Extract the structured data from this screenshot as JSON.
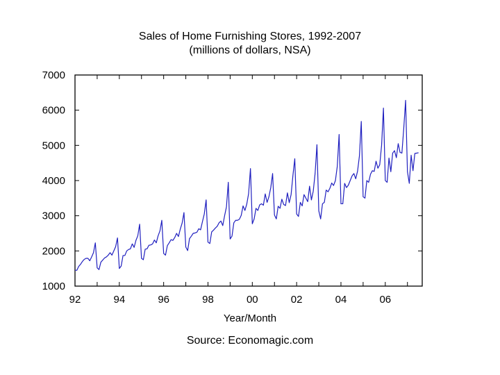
{
  "chart_data": {
    "type": "line",
    "title": "Sales of Home Furnishing Stores, 1992-2007",
    "subtitle": "(millions of dollars, NSA)",
    "xlabel": "Year/Month",
    "ylabel": "",
    "source": "Source: Economagic.com",
    "ylim": [
      1000,
      7000
    ],
    "yticks": [
      1000,
      2000,
      3000,
      4000,
      5000,
      6000,
      7000
    ],
    "xlim": [
      1992,
      2007.6667
    ],
    "xticks": [
      {
        "value": 1992,
        "label": "92"
      },
      {
        "value": 1994,
        "label": "94"
      },
      {
        "value": 1996,
        "label": "96"
      },
      {
        "value": 1998,
        "label": "98"
      },
      {
        "value": 2000,
        "label": "00"
      },
      {
        "value": 2002,
        "label": "02"
      },
      {
        "value": 2004,
        "label": "04"
      },
      {
        "value": 2006,
        "label": "06"
      }
    ],
    "grid": false,
    "legend": "none",
    "line_color": "#1f1fbf",
    "series": [
      {
        "start": "1992-01",
        "frequency": "monthly",
        "values": [
          1450,
          1450,
          1560,
          1620,
          1700,
          1760,
          1790,
          1790,
          1720,
          1830,
          1950,
          2230,
          1520,
          1470,
          1680,
          1740,
          1800,
          1830,
          1880,
          1950,
          1880,
          2000,
          2120,
          2370,
          1500,
          1570,
          1870,
          1870,
          2000,
          2040,
          2060,
          2200,
          2100,
          2300,
          2430,
          2760,
          1790,
          1750,
          2050,
          2060,
          2160,
          2170,
          2200,
          2310,
          2230,
          2430,
          2570,
          2870,
          1930,
          1880,
          2150,
          2230,
          2320,
          2300,
          2380,
          2500,
          2410,
          2620,
          2790,
          3090,
          2110,
          2010,
          2350,
          2420,
          2500,
          2510,
          2530,
          2630,
          2600,
          2830,
          3050,
          3450,
          2250,
          2210,
          2540,
          2590,
          2650,
          2700,
          2800,
          2850,
          2720,
          3000,
          3250,
          3950,
          2340,
          2420,
          2800,
          2870,
          2870,
          2900,
          3010,
          3280,
          3150,
          3330,
          3630,
          4340,
          2770,
          2910,
          3210,
          3150,
          3310,
          3340,
          3300,
          3620,
          3380,
          3540,
          3800,
          4200,
          3020,
          2910,
          3270,
          3210,
          3470,
          3320,
          3290,
          3650,
          3370,
          3600,
          4150,
          4620,
          3050,
          2980,
          3380,
          3280,
          3600,
          3500,
          3400,
          3840,
          3450,
          3700,
          4200,
          5020,
          3140,
          2910,
          3340,
          3380,
          3730,
          3680,
          3780,
          3930,
          3860,
          4000,
          4400,
          5310,
          3340,
          3340,
          3920,
          3800,
          3870,
          4000,
          4130,
          4200,
          4050,
          4270,
          4700,
          5680,
          3540,
          3500,
          4000,
          3950,
          4180,
          4280,
          4260,
          4550,
          4350,
          4450,
          5000,
          6060,
          4000,
          3950,
          4640,
          4250,
          4780,
          4850,
          4650,
          5050,
          4800,
          4780,
          5480,
          6280,
          4250,
          3920,
          4720,
          4280,
          4770,
          4780,
          4790
        ]
      }
    ]
  }
}
